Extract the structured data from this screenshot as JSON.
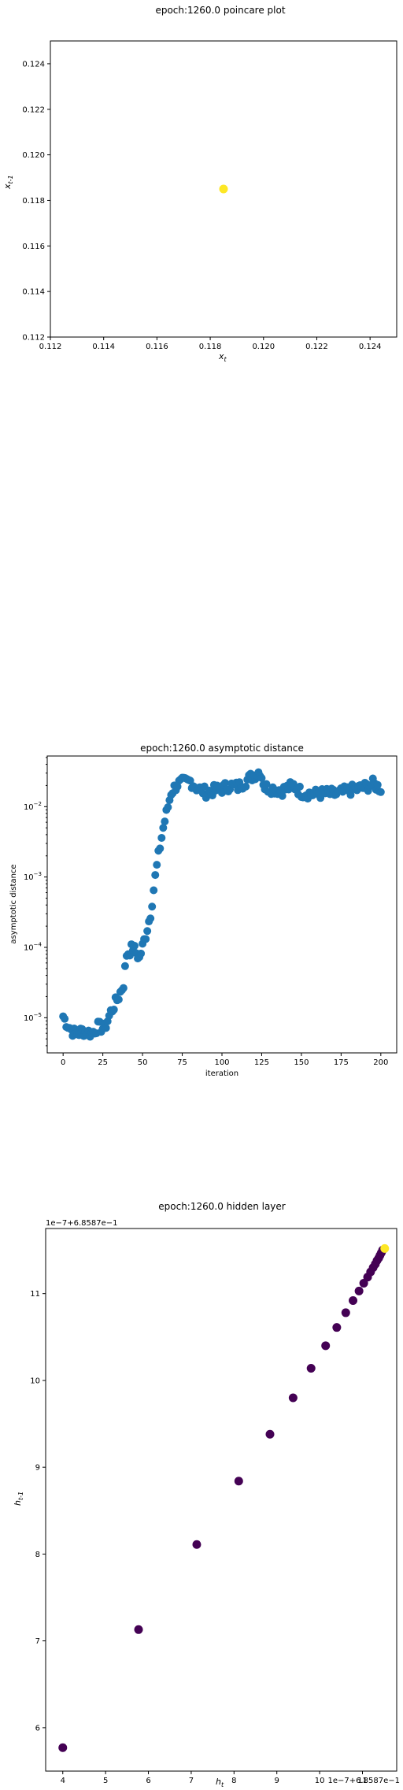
{
  "chart_data": [
    {
      "type": "scatter",
      "title": "epoch:1260.0 poincare plot",
      "xlabel": "x_t",
      "ylabel": "x_{t-1}",
      "xlim": [
        0.112,
        0.125
      ],
      "ylim": [
        0.112,
        0.125
      ],
      "xticks": [
        "0.112",
        "0.114",
        "0.116",
        "0.118",
        "0.120",
        "0.122",
        "0.124"
      ],
      "yticks": [
        "0.112",
        "0.114",
        "0.116",
        "0.118",
        "0.120",
        "0.122",
        "0.124"
      ],
      "points": [
        [
          0.1185,
          0.1185
        ]
      ],
      "point_color": "#fde725",
      "grid": false
    },
    {
      "type": "scatter",
      "title": "epoch:1260.0 asymptotic distance",
      "xlabel": "iteration",
      "ylabel": "asymptotic distance",
      "xlim": [
        -10,
        210
      ],
      "ylim_log10": [
        -5.5,
        -1.28
      ],
      "yscale": "log",
      "xticks": [
        "0",
        "25",
        "50",
        "75",
        "100",
        "125",
        "150",
        "175",
        "200"
      ],
      "yticks": [
        {
          "base": "10",
          "exp": "−5"
        },
        {
          "base": "10",
          "exp": "−4"
        },
        {
          "base": "10",
          "exp": "−3"
        },
        {
          "base": "10",
          "exp": "−2"
        }
      ],
      "point_color": "#1f77b4",
      "anchors": [
        [
          0,
          1.05e-05
        ],
        [
          2,
          8.5e-06
        ],
        [
          5,
          6.8e-06
        ],
        [
          8,
          5.8e-06
        ],
        [
          12,
          6.5e-06
        ],
        [
          18,
          6e-06
        ],
        [
          22,
          7.5e-06
        ],
        [
          26,
          7e-06
        ],
        [
          30,
          1.2e-05
        ],
        [
          35,
          2e-05
        ],
        [
          38,
          3e-05
        ],
        [
          40,
          8e-05
        ],
        [
          44,
          0.0001
        ],
        [
          48,
          7e-05
        ],
        [
          52,
          0.00015
        ],
        [
          55,
          0.0003
        ],
        [
          58,
          0.001
        ],
        [
          60,
          0.002
        ],
        [
          63,
          0.005
        ],
        [
          66,
          0.01
        ],
        [
          68,
          0.016
        ],
        [
          72,
          0.021
        ],
        [
          76,
          0.022
        ],
        [
          80,
          0.023
        ],
        [
          85,
          0.018
        ],
        [
          90,
          0.016
        ],
        [
          95,
          0.017
        ],
        [
          100,
          0.018
        ],
        [
          105,
          0.02
        ],
        [
          110,
          0.019
        ],
        [
          115,
          0.023
        ],
        [
          120,
          0.028
        ],
        [
          124,
          0.032
        ],
        [
          127,
          0.019
        ],
        [
          132,
          0.018
        ],
        [
          138,
          0.017
        ],
        [
          145,
          0.02
        ],
        [
          150,
          0.016
        ],
        [
          158,
          0.015
        ],
        [
          165,
          0.0155
        ],
        [
          172,
          0.015
        ],
        [
          180,
          0.017
        ],
        [
          186,
          0.018
        ],
        [
          190,
          0.019
        ],
        [
          195,
          0.021
        ],
        [
          200,
          0.018
        ]
      ],
      "n_points": 200,
      "grid": false
    },
    {
      "type": "scatter",
      "title": "epoch:1260.0 hidden layer",
      "xlabel": "h_t",
      "ylabel": "h_{t-1}",
      "offset_label_x": "1e−7+6.8587e−1",
      "offset_label_y": "1e−7+6.8587e−1",
      "xlim": [
        3.6,
        11.8
      ],
      "ylim": [
        5.5,
        11.75
      ],
      "xticks": [
        "4",
        "5",
        "6",
        "7",
        "8",
        "9",
        "10",
        "11"
      ],
      "yticks": [
        "6",
        "7",
        "8",
        "9",
        "10",
        "11"
      ],
      "points": [
        [
          4.0,
          5.77
        ],
        [
          5.77,
          7.13
        ],
        [
          7.13,
          8.11
        ],
        [
          8.11,
          8.84
        ],
        [
          8.84,
          9.38
        ],
        [
          9.38,
          9.8
        ],
        [
          9.8,
          10.14
        ],
        [
          10.14,
          10.4
        ],
        [
          10.4,
          10.61
        ],
        [
          10.61,
          10.78
        ],
        [
          10.78,
          10.92
        ],
        [
          10.92,
          11.03
        ],
        [
          11.03,
          11.12
        ],
        [
          11.12,
          11.19
        ],
        [
          11.19,
          11.25
        ],
        [
          11.25,
          11.3
        ],
        [
          11.3,
          11.34
        ],
        [
          11.34,
          11.38
        ],
        [
          11.38,
          11.41
        ],
        [
          11.41,
          11.44
        ],
        [
          11.44,
          11.47
        ],
        [
          11.47,
          11.5
        ],
        [
          11.52,
          11.52
        ]
      ],
      "point_color": "#440154",
      "last_point_color": "#fde725",
      "grid": false
    }
  ]
}
